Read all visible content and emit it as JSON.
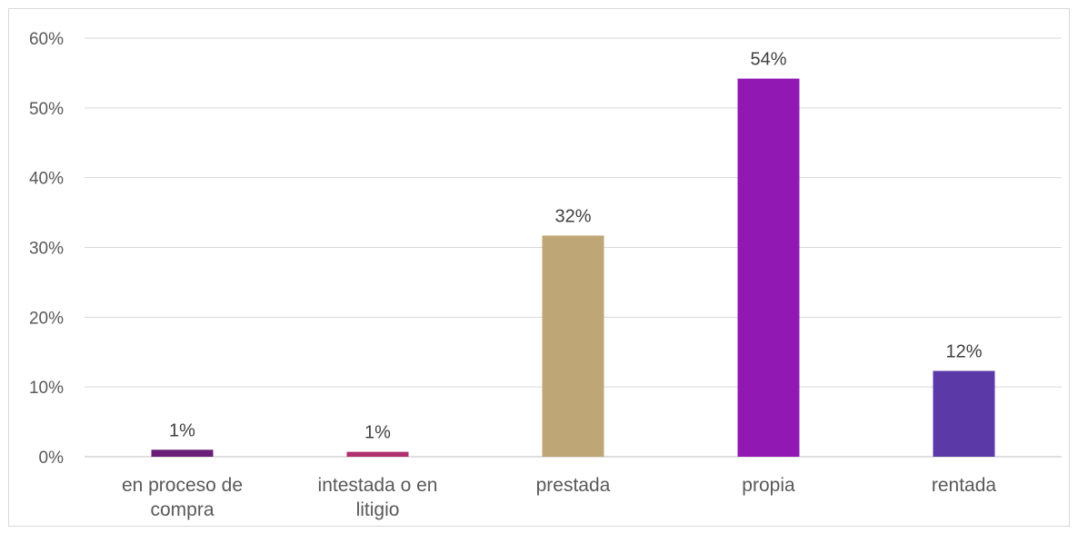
{
  "chart_data": {
    "type": "bar",
    "title": "",
    "xlabel": "",
    "ylabel": "",
    "categories": [
      "en proceso de compra",
      "intestada o en litigio",
      "prestada",
      "propia",
      "rentada"
    ],
    "category_lines": [
      [
        "en proceso de",
        "compra"
      ],
      [
        "intestada o en",
        "litigio"
      ],
      [
        "prestada"
      ],
      [
        "propia"
      ],
      [
        "rentada"
      ]
    ],
    "values": [
      0.01,
      0.007,
      0.317,
      0.542,
      0.123
    ],
    "data_labels": [
      "1%",
      "1%",
      "32%",
      "54%",
      "12%"
    ],
    "colors": [
      "#6a1e78",
      "#b0306f",
      "#bfa677",
      "#9218b4",
      "#5b3aa8"
    ],
    "ylim": [
      0,
      0.6
    ],
    "y_ticks": [
      0,
      0.1,
      0.2,
      0.3,
      0.4,
      0.5,
      0.6
    ],
    "y_tick_labels": [
      "0%",
      "10%",
      "20%",
      "30%",
      "40%",
      "50%",
      "60%"
    ],
    "grid": true,
    "legend": "none"
  }
}
